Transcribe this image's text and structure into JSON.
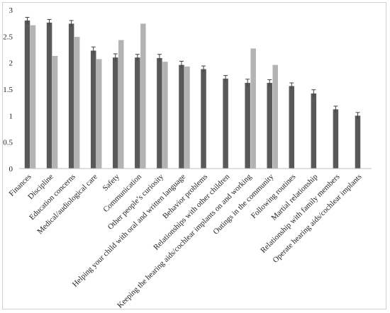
{
  "chart_data": {
    "type": "bar",
    "categories": [
      "Finances",
      "Discipline",
      "Education concerns",
      "Medical/audiological care",
      "Safety",
      "Communication",
      "Other people’s curiosity",
      "Helping your child with oral and written language",
      "Behavior problems",
      "Relationships with other children",
      "Keeping the hearing aids/cochlear implants on and working",
      "Outings in the community",
      "Following routines",
      "Martial relationship",
      "Relationship with family members",
      "Operate hearing aids/cochlear implants"
    ],
    "series": [
      {
        "color": "#595959",
        "values": [
          2.8,
          2.76,
          2.74,
          2.23,
          2.1,
          2.1,
          2.09,
          1.96,
          1.88,
          1.7,
          1.62,
          1.62,
          1.56,
          1.42,
          1.12,
          1.0
        ],
        "error": [
          0.06,
          0.06,
          0.06,
          0.07,
          0.07,
          0.06,
          0.07,
          0.07,
          0.06,
          0.06,
          0.07,
          0.06,
          0.06,
          0.07,
          0.06,
          0.06
        ]
      },
      {
        "color": "#b3b3b3",
        "values": [
          2.71,
          2.13,
          2.49,
          2.07,
          2.43,
          2.74,
          2.02,
          1.93,
          null,
          null,
          2.27,
          1.96,
          null,
          null,
          null,
          null
        ]
      }
    ],
    "yticks": [
      "0",
      "0.5",
      "1",
      "1.5",
      "2",
      "2.5",
      "3"
    ],
    "ylim": [
      0,
      3
    ],
    "grid": false,
    "legend": "none",
    "title": "",
    "xlabel": "",
    "ylabel": ""
  }
}
